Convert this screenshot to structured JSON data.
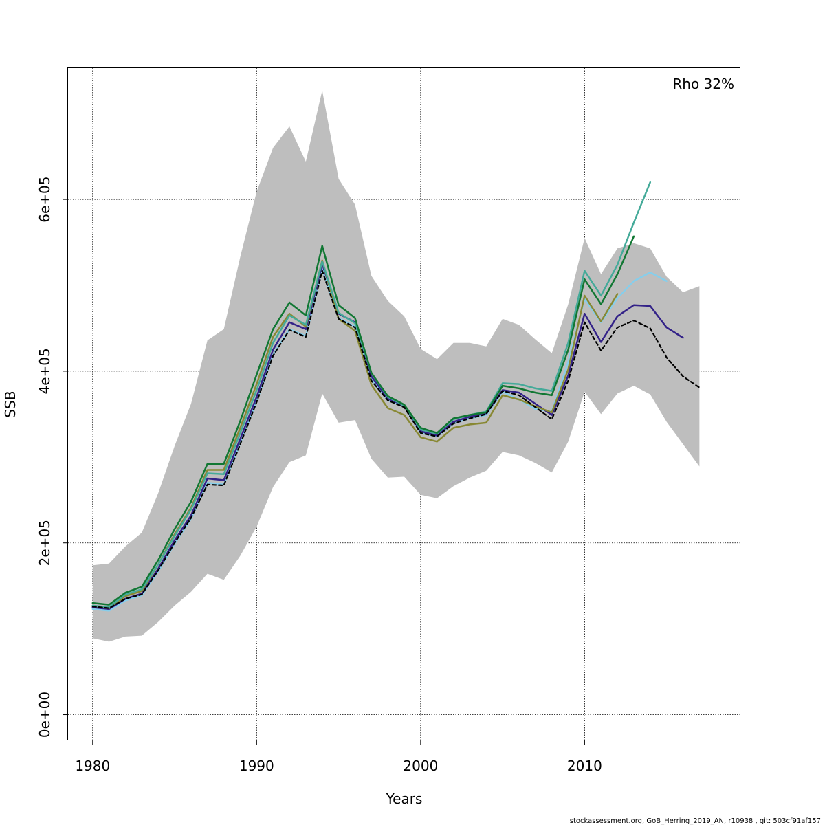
{
  "chart_data": {
    "type": "line",
    "xlabel": "Years",
    "ylabel": "SSB",
    "xlim": [
      1978.5,
      2019.5
    ],
    "ylim": [
      -30000,
      753000
    ],
    "x_ticks": [
      1980,
      1990,
      2000,
      2010
    ],
    "x_tick_labels": [
      "1980",
      "1990",
      "2000",
      "2010"
    ],
    "y_ticks": [
      0,
      200000,
      400000,
      600000
    ],
    "y_tick_labels": [
      "0e+00",
      "2e+05",
      "4e+05",
      "6e+05"
    ],
    "grid": true,
    "legend": {
      "position": "top-right",
      "text": "Rho 32%"
    },
    "footer": "stockassessment.org, GoB_Herring_2019_AN, r10938 , git: 503cf91af157",
    "confidence_band": {
      "color": "#bebebe",
      "x": [
        1980,
        1981,
        1982,
        1983,
        1984,
        1985,
        1986,
        1987,
        1988,
        1989,
        1990,
        1991,
        1992,
        1993,
        1994,
        1995,
        1996,
        1997,
        1998,
        1999,
        2000,
        2001,
        2002,
        2003,
        2004,
        2005,
        2006,
        2007,
        2008,
        2009,
        2010,
        2011,
        2012,
        2013,
        2014,
        2015,
        2016,
        2017
      ],
      "upper": [
        174000,
        176000,
        196000,
        212000,
        258000,
        313000,
        362000,
        436000,
        449000,
        533000,
        609000,
        660000,
        685000,
        644000,
        727000,
        624000,
        594000,
        511000,
        482000,
        464000,
        426000,
        414000,
        433000,
        433000,
        429000,
        461000,
        454000,
        437000,
        421000,
        478000,
        555000,
        513000,
        543000,
        549000,
        543000,
        510000,
        492000,
        499000
      ],
      "lower": [
        89000,
        85000,
        91000,
        92000,
        108000,
        127000,
        143000,
        164000,
        157000,
        185000,
        219000,
        265000,
        294000,
        302000,
        374000,
        340000,
        343000,
        298000,
        276000,
        277000,
        256000,
        252000,
        266000,
        276000,
        284000,
        306000,
        302000,
        293000,
        282000,
        318000,
        376000,
        350000,
        374000,
        383000,
        373000,
        341000,
        315000,
        289000
      ]
    },
    "series": [
      {
        "color": "#000000",
        "dashed": true,
        "x": [
          1980,
          1981,
          1982,
          1983,
          1984,
          1985,
          1986,
          1987,
          1988,
          1989,
          1990,
          1991,
          1992,
          1993,
          1994,
          1995,
          1996,
          1997,
          1998,
          1999,
          2000,
          2001,
          2002,
          2003,
          2004,
          2005,
          2006,
          2007,
          2008,
          2009,
          2010,
          2011,
          2012,
          2013,
          2014,
          2015,
          2016,
          2017
        ],
        "values": [
          126000,
          124000,
          135000,
          140000,
          168000,
          200000,
          229000,
          268000,
          267000,
          315000,
          364000,
          418000,
          448000,
          440000,
          517000,
          461000,
          451000,
          389000,
          366000,
          358000,
          328000,
          324000,
          339000,
          345000,
          350000,
          377000,
          372000,
          358000,
          344000,
          389000,
          457000,
          424000,
          451000,
          459000,
          450000,
          416000,
          394000,
          381000
        ]
      },
      {
        "color": "#87ceeb",
        "dashed": false,
        "x": [
          1980,
          1981,
          1982,
          1983,
          1984,
          1985,
          1986,
          1987,
          1988,
          1989,
          1990,
          1991,
          1992,
          1993,
          1994,
          1995,
          1996,
          1997,
          1998,
          1999,
          2000,
          2001,
          2002,
          2003,
          2004,
          2005,
          2006,
          2007,
          2008,
          2009,
          2010,
          2011,
          2012,
          2013,
          2014,
          2015
        ],
        "values": [
          123000,
          121000,
          133000,
          139000,
          167000,
          199000,
          228000,
          270000,
          268000,
          316000,
          365000,
          419000,
          449000,
          441000,
          519000,
          462000,
          452000,
          391000,
          366000,
          359000,
          328000,
          324000,
          339000,
          345000,
          349000,
          376000,
          367000,
          356000,
          353000,
          411000,
          484000,
          457000,
          485000,
          505000,
          515000,
          505000
        ]
      },
      {
        "color": "#332288",
        "dashed": false,
        "x": [
          1980,
          1981,
          1982,
          1983,
          1984,
          1985,
          1986,
          1987,
          1988,
          1989,
          1990,
          1991,
          1992,
          1993,
          1994,
          1995,
          1996,
          1997,
          1998,
          1999,
          2000,
          2001,
          2002,
          2003,
          2004,
          2005,
          2006,
          2007,
          2008,
          2009,
          2010,
          2011,
          2012,
          2013,
          2014,
          2015,
          2016
        ],
        "values": [
          125000,
          123000,
          135000,
          141000,
          170000,
          203000,
          232000,
          275000,
          273000,
          321000,
          370000,
          425000,
          457000,
          449000,
          525000,
          467000,
          457000,
          394000,
          368000,
          360000,
          330000,
          325000,
          341000,
          347000,
          351000,
          378000,
          375000,
          362000,
          349000,
          395000,
          467000,
          434000,
          464000,
          477000,
          476000,
          451000,
          439000
        ]
      },
      {
        "color": "#888833",
        "dashed": false,
        "x": [
          1980,
          1981,
          1982,
          1983,
          1984,
          1985,
          1986,
          1987,
          1988,
          1989,
          1990,
          1991,
          1992,
          1993,
          1994,
          1995,
          1996,
          1997,
          1998,
          1999,
          2000,
          2001,
          2002,
          2003,
          2004,
          2005,
          2006,
          2007,
          2008,
          2009,
          2010,
          2011,
          2012
        ],
        "values": [
          127000,
          124000,
          138000,
          144000,
          175000,
          210000,
          241000,
          285000,
          285000,
          334000,
          385000,
          440000,
          467000,
          452000,
          529000,
          461000,
          447000,
          384000,
          357000,
          349000,
          323000,
          318000,
          334000,
          338000,
          340000,
          372000,
          367000,
          359000,
          352000,
          402000,
          488000,
          458000,
          490000
        ]
      },
      {
        "color": "#44aa99",
        "dashed": false,
        "x": [
          1980,
          1981,
          1982,
          1983,
          1984,
          1985,
          1986,
          1987,
          1988,
          1989,
          1990,
          1991,
          1992,
          1993,
          1994,
          1995,
          1996,
          1997,
          1998,
          1999,
          2000,
          2001,
          2002,
          2003,
          2004,
          2005,
          2006,
          2007,
          2008,
          2009,
          2010,
          2011,
          2012,
          2013,
          2014
        ],
        "values": [
          127000,
          125000,
          140000,
          146000,
          175000,
          208000,
          239000,
          281000,
          280000,
          328000,
          378000,
          433000,
          465000,
          454000,
          528000,
          468000,
          456000,
          398000,
          370000,
          360000,
          332000,
          327000,
          344000,
          349000,
          353000,
          386000,
          385000,
          380000,
          377000,
          433000,
          517000,
          488000,
          524000,
          573000,
          620000
        ]
      },
      {
        "color": "#117733",
        "dashed": false,
        "x": [
          1980,
          1981,
          1982,
          1983,
          1984,
          1985,
          1986,
          1987,
          1988,
          1989,
          1990,
          1991,
          1992,
          1993,
          1994,
          1995,
          1996,
          1997,
          1998,
          1999,
          2000,
          2001,
          2002,
          2003,
          2004,
          2005,
          2006,
          2007,
          2008,
          2009,
          2010,
          2011,
          2012,
          2013
        ],
        "values": [
          130000,
          128000,
          142000,
          149000,
          180000,
          216000,
          248000,
          292000,
          292000,
          342000,
          396000,
          449000,
          480000,
          465000,
          546000,
          477000,
          462000,
          398000,
          371000,
          361000,
          334000,
          328000,
          345000,
          349000,
          352000,
          383000,
          380000,
          375000,
          372000,
          425000,
          507000,
          478000,
          513000,
          557000
        ]
      }
    ]
  }
}
